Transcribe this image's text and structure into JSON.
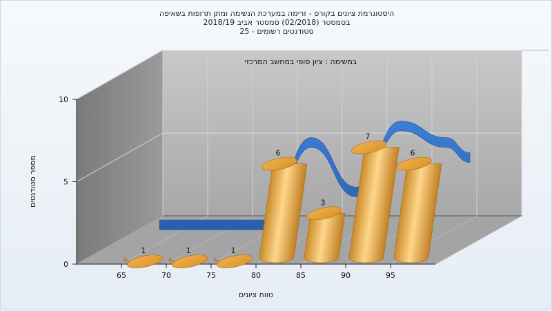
{
  "title_lines": [
    "היסטוגרמת ציונים בקורס - זרימה במערכת הנשימה ומתן תרופות בשאיפה",
    "בסמסטר  (02/2018)  סמסטר אביב 2018/19",
    "סטודנטים רשומים - 25"
  ],
  "colors": {
    "bar": "#e8a840",
    "ribbon": "#2f6fc4",
    "wall": "#b8b8b8",
    "side_wall": "#8a8a8a",
    "floor": "#9e9e9e"
  },
  "chart_data": {
    "type": "bar",
    "title": "היסטוגרמת ציונים בקורס - זרימה במערכת הנשימה ומתן תרופות בשאיפה",
    "subtitle": "במשימה : ציון סופי במחשב המרכזי",
    "xlabel": "טווח ציונים",
    "ylabel": "מספר סטודנטים",
    "ylim": [
      0,
      10
    ],
    "yticks": [
      "0",
      "5",
      "10"
    ],
    "xticks": [
      "65",
      "70",
      "75",
      "80",
      "85",
      "90",
      "95"
    ],
    "categories": [
      "65",
      "70",
      "75",
      "80",
      "85",
      "90",
      "95"
    ],
    "values": [
      1,
      1,
      1,
      6,
      3,
      7,
      6
    ],
    "value_labels": [
      "1",
      "1",
      "1",
      "6",
      "3",
      "7",
      "6"
    ],
    "grid": true,
    "legend": "none"
  }
}
